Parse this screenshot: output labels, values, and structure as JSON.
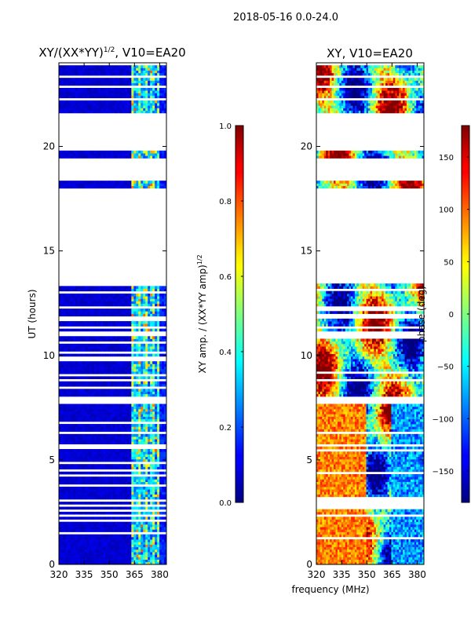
{
  "figure_title": "2018-05-16 0.0-24.0",
  "xlabel_shared": "frequency (MHz)",
  "chart_data": [
    {
      "type": "heatmap",
      "name": "normalized-amplitude",
      "title_main": "XY/(XX*YY)",
      "title_exp": "1/2",
      "title_suffix": ", V10=EA20",
      "ylabel": "UT (hours)",
      "xlim": [
        320,
        384
      ],
      "ylim": [
        0,
        24
      ],
      "xticks": [
        320,
        335,
        350,
        365,
        380
      ],
      "yticks": [
        0,
        5,
        10,
        15,
        20
      ],
      "colorbar": {
        "label_main": "XY amp. / (XX*YY amp)",
        "label_exp": "1/2",
        "range": [
          0.0,
          1.0
        ],
        "ticks": [
          "0.0",
          "0.2",
          "0.4",
          "0.6",
          "0.8",
          "1.0"
        ],
        "tick_values": [
          0.0,
          0.2,
          0.4,
          0.6,
          0.8,
          1.0
        ]
      },
      "data_gaps_ut": [
        [
          13.5,
          18.0
        ],
        [
          18.3,
          19.4
        ],
        [
          19.8,
          21.6
        ],
        [
          7.8,
          8.1
        ]
      ],
      "bright_band_mhz": [
        363,
        380
      ]
    },
    {
      "type": "heatmap",
      "name": "phase",
      "title": "XY, V10=EA20",
      "xlim": [
        320,
        384
      ],
      "ylim": [
        0,
        24
      ],
      "xticks": [
        320,
        335,
        350,
        365,
        380
      ],
      "yticks": [
        0,
        5,
        10,
        15,
        20
      ],
      "colorbar": {
        "label": "phase (deg)",
        "range": [
          -180,
          180
        ],
        "ticks": [
          "150",
          "100",
          "50",
          "0",
          "−50",
          "−100",
          "−150"
        ],
        "tick_values": [
          150,
          100,
          50,
          0,
          -50,
          -100,
          -150
        ]
      },
      "data_gaps_ut": [
        [
          13.5,
          18.0
        ],
        [
          18.3,
          19.4
        ],
        [
          19.8,
          21.6
        ],
        [
          7.8,
          8.1
        ]
      ]
    }
  ]
}
